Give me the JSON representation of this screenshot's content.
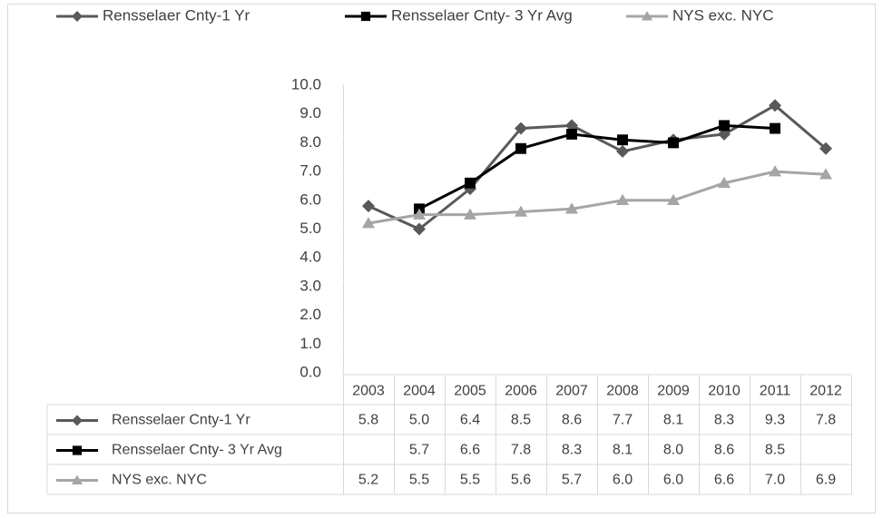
{
  "chart_data": {
    "type": "line",
    "categories": [
      "2003",
      "2004",
      "2005",
      "2006",
      "2007",
      "2008",
      "2009",
      "2010",
      "2011",
      "2012"
    ],
    "series": [
      {
        "name": "Rensselaer Cnty-1 Yr",
        "color": "#595959",
        "marker": "diamond",
        "values": [
          5.8,
          5.0,
          6.4,
          8.5,
          8.6,
          7.7,
          8.1,
          8.3,
          9.3,
          7.8
        ],
        "value_labels": [
          "5.8",
          "5.0",
          "6.4",
          "8.5",
          "8.6",
          "7.7",
          "8.1",
          "8.3",
          "9.3",
          "7.8"
        ]
      },
      {
        "name": "Rensselaer Cnty- 3 Yr Avg",
        "color": "#000000",
        "marker": "square",
        "values": [
          null,
          5.7,
          6.6,
          7.8,
          8.3,
          8.1,
          8.0,
          8.6,
          8.5,
          null
        ],
        "value_labels": [
          null,
          "5.7",
          "6.6",
          "7.8",
          "8.3",
          "8.1",
          "8.0",
          "8.6",
          "8.5",
          null
        ]
      },
      {
        "name": "NYS exc. NYC",
        "color": "#a5a5a5",
        "marker": "triangle",
        "values": [
          5.2,
          5.5,
          5.5,
          5.6,
          5.7,
          6.0,
          6.0,
          6.6,
          7.0,
          6.9
        ],
        "value_labels": [
          "5.2",
          "5.5",
          "5.5",
          "5.6",
          "5.7",
          "6.0",
          "6.0",
          "6.6",
          "7.0",
          "6.9"
        ]
      }
    ],
    "ylim": [
      0,
      10
    ],
    "yticks": [
      {
        "value": 0,
        "label": "0.0"
      },
      {
        "value": 1,
        "label": "1.0"
      },
      {
        "value": 2,
        "label": "2.0"
      },
      {
        "value": 3,
        "label": "3.0"
      },
      {
        "value": 4,
        "label": "4.0"
      },
      {
        "value": 5,
        "label": "5.0"
      },
      {
        "value": 6,
        "label": "6.0"
      },
      {
        "value": 7,
        "label": "7.0"
      },
      {
        "value": 8,
        "label": "8.0"
      },
      {
        "value": 9,
        "label": "9.0"
      },
      {
        "value": 10,
        "label": "10.0"
      }
    ],
    "legend": "top",
    "grid": false,
    "data_table": true
  }
}
